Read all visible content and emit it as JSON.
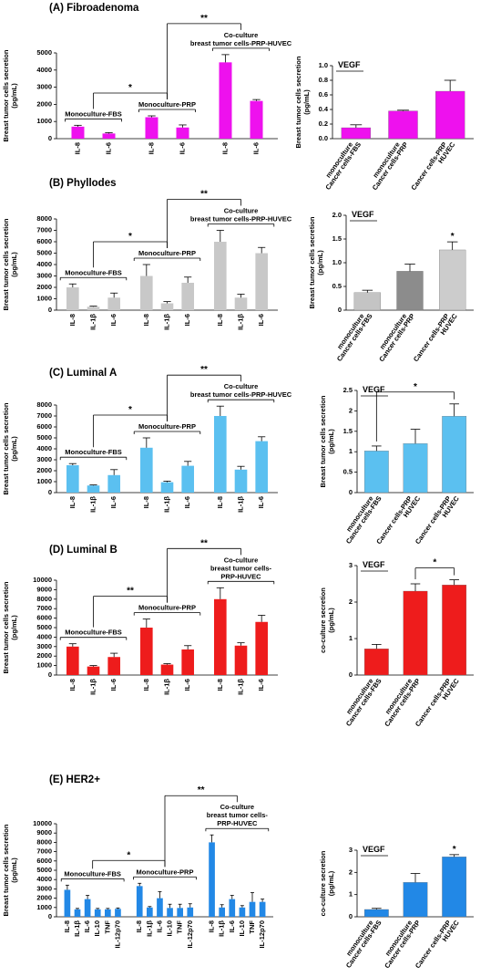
{
  "chart_data": [
    {
      "type": "bar",
      "title": "(A) Fibroadenoma",
      "ylabel": [
        "Breast tumor cells secretion",
        "(pg/mL)"
      ],
      "ylim": [
        0,
        5000
      ],
      "yticks": [
        0,
        1000,
        2000,
        3000,
        4000,
        5000
      ],
      "color": "#ee11ee",
      "groups": [
        {
          "label": [
            "Monoculture-FBS"
          ],
          "categories": [
            "IL-8",
            "IL-6"
          ],
          "values": [
            700,
            300
          ],
          "errors": [
            80,
            50
          ]
        },
        {
          "label": [
            "Monoculture-PRP"
          ],
          "categories": [
            "IL-8",
            "IL-6"
          ],
          "values": [
            1250,
            650
          ],
          "errors": [
            80,
            150
          ]
        },
        {
          "label": [
            "Co-culture",
            "breast tumor cells-PRP-HUVEC"
          ],
          "categories": [
            "IL-8",
            "IL-6"
          ],
          "values": [
            4450,
            2200
          ],
          "errors": [
            450,
            80
          ]
        }
      ],
      "annotations": [
        "*",
        "**"
      ]
    },
    {
      "type": "bar",
      "label": "VEGF",
      "ylabel": [
        "Breast tumor cells secretion",
        "(pg/mL)"
      ],
      "ylim": [
        0,
        1
      ],
      "yticks": [
        {
          "value": 0,
          "label": "0.0"
        },
        0.2,
        0.4,
        0.6,
        0.8,
        {
          "value": 1,
          "label": "1.0"
        }
      ],
      "color": "#ee11ee",
      "categories": [
        [
          "monoculture",
          "Cancer cells-FBS"
        ],
        [
          "monoculture",
          "Cancer cells-PRP"
        ],
        [
          "Cancer cells-PRP",
          "HUVEC"
        ]
      ],
      "values": [
        0.15,
        0.38,
        0.65
      ],
      "errors": [
        0.04,
        0.01,
        0.15
      ]
    },
    {
      "type": "bar",
      "title": "(B) Phyllodes",
      "ylabel": [
        "Breast tumor cells secretion",
        "(pg/mL)"
      ],
      "ylim": [
        0,
        8000
      ],
      "yticks": [
        0,
        1000,
        2000,
        3000,
        4000,
        5000,
        6000,
        7000,
        8000
      ],
      "color": "#c8c8c8",
      "groups": [
        {
          "label": [
            "Monoculture-FBS"
          ],
          "categories": [
            "IL-8",
            "IL-1β",
            "IL-6"
          ],
          "values": [
            2000,
            300,
            1100
          ],
          "errors": [
            300,
            50,
            400
          ]
        },
        {
          "label": [
            "Monoculture-PRP"
          ],
          "categories": [
            "IL-8",
            "IL-1β",
            "IL-6"
          ],
          "values": [
            3000,
            600,
            2400
          ],
          "errors": [
            1000,
            150,
            500
          ]
        },
        {
          "label": [
            "Co-culture",
            "breast tumor cells-PRP-HUVEC"
          ],
          "categories": [
            "IL-8",
            "IL-1β",
            "IL-6"
          ],
          "values": [
            6000,
            1100,
            5000
          ],
          "errors": [
            1000,
            300,
            500
          ]
        }
      ],
      "annotations": [
        "*",
        "**"
      ]
    },
    {
      "type": "bar",
      "label": "VEGF",
      "ylabel": [
        "Breast tumor cells secretion",
        "(pg/mL)"
      ],
      "ylim": [
        0,
        2
      ],
      "yticks": [
        0,
        0.5,
        {
          "value": 1,
          "label": "1.0"
        },
        1.5,
        {
          "value": 2,
          "label": "2.0"
        }
      ],
      "colors": [
        "#c4c4c4",
        "#8c8c8c",
        "#cccccc"
      ],
      "categories": [
        [
          "monoculture",
          "Cancer cells-FBS"
        ],
        [
          "monoculture",
          "Cancer cells-PRP"
        ],
        [
          "Cancer cells-PRP",
          "HUVEC"
        ]
      ],
      "values": [
        0.37,
        0.82,
        1.27
      ],
      "errors": [
        0.05,
        0.15,
        0.17
      ],
      "annotations": [
        "*"
      ]
    },
    {
      "type": "bar",
      "title": "(C) Luminal A",
      "ylabel": [
        "Breast tumor cells secretion",
        "(pg/mL)"
      ],
      "ylim": [
        0,
        8000
      ],
      "yticks": [
        0,
        1000,
        2000,
        3000,
        4000,
        5000,
        6000,
        7000,
        8000
      ],
      "color": "#5bc0f0",
      "groups": [
        {
          "label": [
            "Monoculture-FBS"
          ],
          "categories": [
            "IL-8",
            "IL-1β",
            "IL-6"
          ],
          "values": [
            2500,
            650,
            1600
          ],
          "errors": [
            150,
            50,
            500
          ]
        },
        {
          "label": [
            "Monoculture-PRP"
          ],
          "categories": [
            "IL-8",
            "IL-1β",
            "IL-6"
          ],
          "values": [
            4100,
            950,
            2450
          ],
          "errors": [
            900,
            100,
            400
          ]
        },
        {
          "label": [
            "Co-culture",
            "breast tumor cells-PRP-HUVEC"
          ],
          "categories": [
            "IL-8",
            "IL-1β",
            "IL-6"
          ],
          "values": [
            7000,
            2100,
            4700
          ],
          "errors": [
            900,
            300,
            400
          ]
        }
      ],
      "annotations": [
        "*",
        "**"
      ]
    },
    {
      "type": "bar",
      "label": "VEGF",
      "ylabel": [
        "Breast tumor cells secretion",
        "(pg/mL)"
      ],
      "ylim": [
        0,
        2.5
      ],
      "yticks": [
        0,
        0.5,
        1,
        1.5,
        2,
        2.5
      ],
      "color": "#5bc0f0",
      "categories": [
        [
          "monoculture",
          "Cancer cells-FBS"
        ],
        [
          "Cancer cells-PRP",
          "HUVEC"
        ],
        [
          "Cancer cells-PRP",
          "HUVEC"
        ]
      ],
      "values": [
        1.02,
        1.2,
        1.87
      ],
      "errors": [
        0.12,
        0.35,
        0.3
      ],
      "annotations": [
        "*"
      ]
    },
    {
      "type": "bar",
      "title": "(D) Luminal B",
      "ylabel": [
        "Breast tumor cells secretion",
        "(pg/mL)"
      ],
      "ylim": [
        0,
        10000
      ],
      "yticks": [
        0,
        1000,
        2000,
        3000,
        4000,
        5000,
        6000,
        7000,
        8000,
        9000,
        10000
      ],
      "color": "#ee1c1c",
      "groups": [
        {
          "label": [
            "Monoculture-FBS"
          ],
          "categories": [
            "IL-8",
            "IL-1β",
            "IL-6"
          ],
          "values": [
            3000,
            900,
            1900
          ],
          "errors": [
            300,
            100,
            400
          ]
        },
        {
          "label": [
            "Monoculture-PRP"
          ],
          "categories": [
            "IL-8",
            "IL-1β",
            "IL-6"
          ],
          "values": [
            5000,
            1100,
            2700
          ],
          "errors": [
            900,
            100,
            400
          ]
        },
        {
          "label": [
            "Co-culture",
            "breast tumor cells-",
            "PRP-HUVEC"
          ],
          "categories": [
            "IL-8",
            "IL-1β",
            "IL-6"
          ],
          "values": [
            8000,
            3100,
            5600
          ],
          "errors": [
            1200,
            300,
            700
          ]
        }
      ],
      "annotations": [
        "**",
        "**"
      ]
    },
    {
      "type": "bar",
      "label": "VEGF",
      "ylabel": [
        "co-culture secretion",
        "(pg/mL)"
      ],
      "ylim": [
        0,
        3
      ],
      "yticks": [
        0,
        1,
        2,
        3
      ],
      "color": "#ee1c1c",
      "categories": [
        [
          "monoculture",
          "Cancer cells-FBS"
        ],
        [
          "monoculture",
          "Cancer cells-PRP"
        ],
        [
          "Cancer cells-PRP",
          "HUVEC"
        ]
      ],
      "values": [
        0.72,
        2.3,
        2.47
      ],
      "errors": [
        0.12,
        0.2,
        0.14
      ],
      "annotations": [
        "*"
      ]
    },
    {
      "type": "bar",
      "title": "(E) HER2+",
      "ylabel": [
        "Breast tumor cells secretion",
        "(pg/mL)"
      ],
      "ylim": [
        0,
        10000
      ],
      "yticks": [
        0,
        1000,
        2000,
        3000,
        4000,
        5000,
        6000,
        7000,
        8000,
        9000,
        10000
      ],
      "color": "#2288e6",
      "groups": [
        {
          "label": [
            "Monoculture-FBS"
          ],
          "categories": [
            "IL-8",
            "IL-1β",
            "IL-6",
            "IL-10",
            "TNF",
            "IL-12p70"
          ],
          "values": [
            2900,
            800,
            1900,
            800,
            800,
            850
          ],
          "errors": [
            500,
            100,
            400,
            100,
            100,
            100
          ]
        },
        {
          "label": [
            "Monoculture-PRP"
          ],
          "categories": [
            "IL-8",
            "IL-1β",
            "IL-6",
            "IL-10",
            "TNF",
            "IL-12p70"
          ],
          "values": [
            3300,
            1000,
            2000,
            950,
            950,
            1000
          ],
          "errors": [
            300,
            100,
            700,
            400,
            400,
            400
          ]
        },
        {
          "label": [
            "Co-culture",
            "breast tumor cells-",
            "PRP-HUVEC"
          ],
          "categories": [
            "IL-8",
            "IL-1β",
            "IL-6",
            "IL-10",
            "TNF",
            "IL-12p70"
          ],
          "values": [
            8000,
            1000,
            1900,
            1000,
            1600,
            1600
          ],
          "errors": [
            800,
            300,
            400,
            200,
            1000,
            300
          ]
        }
      ],
      "annotations": [
        "*",
        "**"
      ]
    },
    {
      "type": "bar",
      "label": "VEGF",
      "ylabel": [
        "co-culture secretion",
        "(pg/mL)"
      ],
      "ylim": [
        0,
        3
      ],
      "yticks": [
        0,
        1,
        2,
        3
      ],
      "color": "#2288e6",
      "categories": [
        [
          "monoculture",
          "Cancer cells-FBS"
        ],
        [
          "monoculture",
          "Cancer cells-PRP"
        ],
        [
          "Cancer cells-PRP",
          "HUVEC"
        ]
      ],
      "values": [
        0.33,
        1.55,
        2.7
      ],
      "errors": [
        0.05,
        0.4,
        0.1
      ],
      "annotations": [
        "*"
      ]
    }
  ]
}
